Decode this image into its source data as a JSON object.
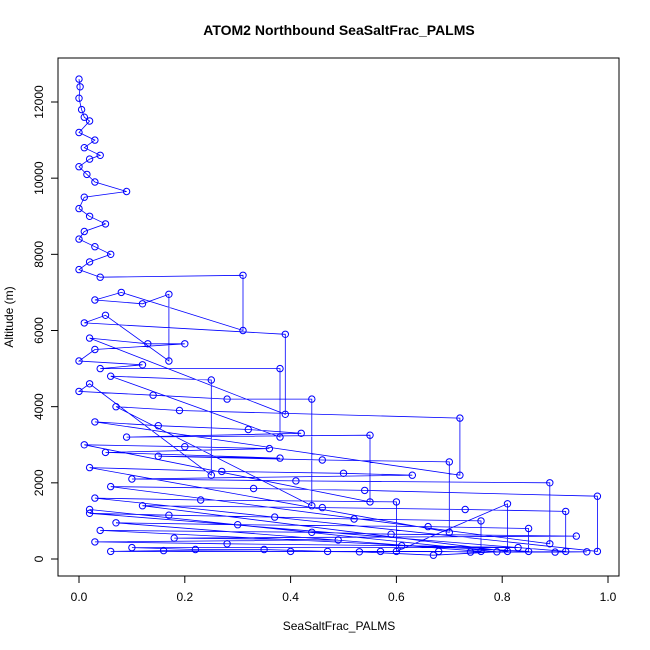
{
  "chart_data": {
    "type": "scatter",
    "title": "ATOM2 Northbound SeaSaltFrac_PALMS",
    "xlabel": "SeaSaltFrac_PALMS",
    "ylabel": "Altitude (m)",
    "xlim": [
      0,
      1.0
    ],
    "ylim": [
      0,
      12600
    ],
    "x_ticks": [
      0,
      0.2,
      0.4,
      0.6,
      0.8,
      1.0
    ],
    "x_tick_labels": [
      "0.0",
      "0.2",
      "0.4",
      "0.6",
      "0.8",
      "1.0"
    ],
    "y_ticks": [
      0,
      2000,
      4000,
      6000,
      8000,
      10000,
      12000
    ],
    "y_tick_labels": [
      "0",
      "2000",
      "4000",
      "6000",
      "8000",
      "10000",
      "12000"
    ],
    "grid": false,
    "legend": "none",
    "marker": "open-circle",
    "connected": true,
    "series": [
      {
        "color": "#0000ff",
        "points": [
          [
            0.0,
            12600
          ],
          [
            0.002,
            12400
          ],
          [
            0.0,
            12100
          ],
          [
            0.005,
            11800
          ],
          [
            0.01,
            11600
          ],
          [
            0.02,
            11500
          ],
          [
            0.0,
            11200
          ],
          [
            0.03,
            11000
          ],
          [
            0.01,
            10800
          ],
          [
            0.04,
            10600
          ],
          [
            0.02,
            10500
          ],
          [
            0.0,
            10300
          ],
          [
            0.015,
            10100
          ],
          [
            0.03,
            9900
          ],
          [
            0.09,
            9650
          ],
          [
            0.01,
            9500
          ],
          [
            0.0,
            9200
          ],
          [
            0.02,
            9000
          ],
          [
            0.05,
            8800
          ],
          [
            0.01,
            8600
          ],
          [
            0.0,
            8400
          ],
          [
            0.03,
            8200
          ],
          [
            0.06,
            8000
          ],
          [
            0.02,
            7800
          ],
          [
            0.0,
            7600
          ],
          [
            0.04,
            7400
          ],
          [
            0.31,
            7450
          ],
          [
            0.31,
            6000
          ],
          [
            0.08,
            7000
          ],
          [
            0.03,
            6800
          ],
          [
            0.12,
            6700
          ],
          [
            0.17,
            6950
          ],
          [
            0.17,
            5200
          ],
          [
            0.05,
            6400
          ],
          [
            0.01,
            6200
          ],
          [
            0.39,
            5900
          ],
          [
            0.39,
            3800
          ],
          [
            0.02,
            5800
          ],
          [
            0.13,
            5650
          ],
          [
            0.2,
            5650
          ],
          [
            0.03,
            5500
          ],
          [
            0.0,
            5200
          ],
          [
            0.12,
            5100
          ],
          [
            0.04,
            5000
          ],
          [
            0.38,
            5000
          ],
          [
            0.38,
            3200
          ],
          [
            0.06,
            4800
          ],
          [
            0.25,
            4700
          ],
          [
            0.25,
            2200
          ],
          [
            0.02,
            4600
          ],
          [
            0.0,
            4400
          ],
          [
            0.14,
            4300
          ],
          [
            0.28,
            4200
          ],
          [
            0.44,
            4200
          ],
          [
            0.44,
            1400
          ],
          [
            0.07,
            4000
          ],
          [
            0.19,
            3900
          ],
          [
            0.72,
            3700
          ],
          [
            0.72,
            2200
          ],
          [
            0.03,
            3600
          ],
          [
            0.15,
            3500
          ],
          [
            0.32,
            3400
          ],
          [
            0.42,
            3300
          ],
          [
            0.09,
            3200
          ],
          [
            0.55,
            3250
          ],
          [
            0.55,
            1500
          ],
          [
            0.01,
            3000
          ],
          [
            0.2,
            2950
          ],
          [
            0.36,
            2900
          ],
          [
            0.05,
            2800
          ],
          [
            0.38,
            2650
          ],
          [
            0.15,
            2700
          ],
          [
            0.46,
            2600
          ],
          [
            0.7,
            2550
          ],
          [
            0.7,
            700
          ],
          [
            0.02,
            2400
          ],
          [
            0.27,
            2300
          ],
          [
            0.5,
            2250
          ],
          [
            0.63,
            2200
          ],
          [
            0.1,
            2100
          ],
          [
            0.41,
            2050
          ],
          [
            0.89,
            2000
          ],
          [
            0.89,
            400
          ],
          [
            0.06,
            1900
          ],
          [
            0.33,
            1850
          ],
          [
            0.54,
            1800
          ],
          [
            0.98,
            1650
          ],
          [
            0.98,
            200
          ],
          [
            0.03,
            1600
          ],
          [
            0.23,
            1550
          ],
          [
            0.6,
            1500
          ],
          [
            0.6,
            200
          ],
          [
            0.81,
            1450
          ],
          [
            0.81,
            200
          ],
          [
            0.12,
            1400
          ],
          [
            0.46,
            1350
          ],
          [
            0.73,
            1300
          ],
          [
            0.92,
            1250
          ],
          [
            0.92,
            200
          ],
          [
            0.02,
            1200
          ],
          [
            0.17,
            1150
          ],
          [
            0.37,
            1100
          ],
          [
            0.52,
            1050
          ],
          [
            0.76,
            1000
          ],
          [
            0.76,
            200
          ],
          [
            0.07,
            950
          ],
          [
            0.3,
            900
          ],
          [
            0.66,
            850
          ],
          [
            0.85,
            800
          ],
          [
            0.85,
            200
          ],
          [
            0.04,
            750
          ],
          [
            0.44,
            700
          ],
          [
            0.59,
            650
          ],
          [
            0.94,
            600
          ],
          [
            0.18,
            550
          ],
          [
            0.49,
            500
          ],
          [
            0.03,
            450
          ],
          [
            0.28,
            400
          ],
          [
            0.61,
            350
          ],
          [
            0.83,
            300
          ],
          [
            0.1,
            300
          ],
          [
            0.22,
            250
          ],
          [
            0.35,
            250
          ],
          [
            0.47,
            200
          ],
          [
            0.57,
            200
          ],
          [
            0.68,
            200
          ],
          [
            0.74,
            180
          ],
          [
            0.9,
            180
          ],
          [
            0.96,
            190
          ],
          [
            0.06,
            200
          ],
          [
            0.16,
            220
          ],
          [
            0.4,
            200
          ],
          [
            0.53,
            190
          ],
          [
            0.67,
            100
          ],
          [
            0.79,
            190
          ],
          [
            0.02,
            1300
          ]
        ]
      }
    ]
  }
}
